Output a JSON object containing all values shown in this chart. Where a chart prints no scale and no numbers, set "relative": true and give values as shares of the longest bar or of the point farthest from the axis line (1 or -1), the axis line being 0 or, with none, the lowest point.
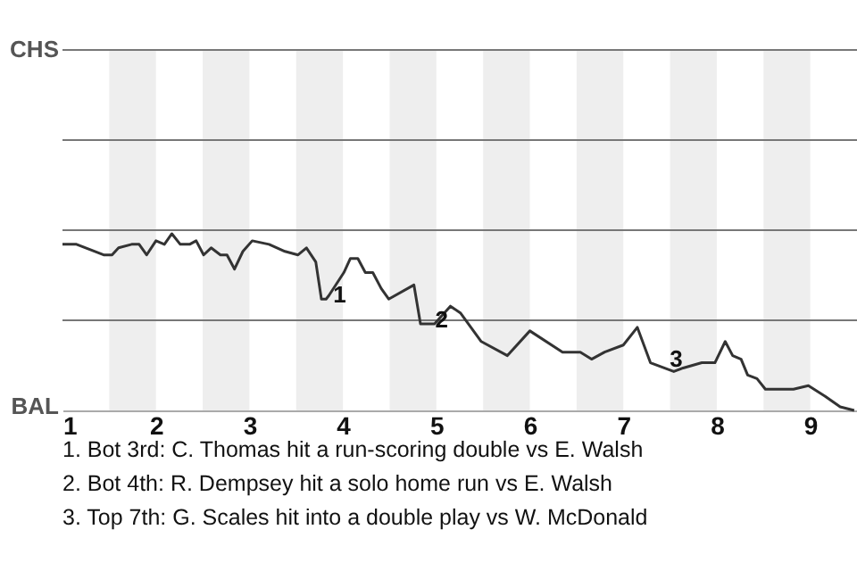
{
  "chart_data": {
    "type": "line",
    "relative": true,
    "x": [
      1.0,
      1.15,
      1.44,
      1.53,
      1.6,
      1.74,
      1.82,
      1.9,
      2.0,
      2.09,
      2.17,
      2.26,
      2.36,
      2.43,
      2.51,
      2.59,
      2.69,
      2.76,
      2.84,
      2.93,
      3.03,
      3.21,
      3.38,
      3.52,
      3.61,
      3.71,
      3.77,
      3.82,
      3.85,
      4.01,
      4.08,
      4.16,
      4.24,
      4.32,
      4.41,
      4.49,
      4.76,
      4.83,
      4.98,
      5.15,
      5.26,
      5.48,
      5.76,
      6.0,
      6.35,
      6.54,
      6.66,
      6.8,
      7.0,
      7.15,
      7.29,
      7.54,
      7.64,
      7.84,
      7.98,
      8.09,
      8.17,
      8.26,
      8.33,
      8.43,
      8.52,
      8.66,
      8.82,
      8.98,
      9.16,
      9.32,
      9.47
    ],
    "series": [
      {
        "color": "#333333",
        "values": [
          0.94,
          0.94,
          0.88,
          0.88,
          0.92,
          0.94,
          0.94,
          0.88,
          0.96,
          0.94,
          1,
          0.94,
          0.94,
          0.96,
          0.88,
          0.92,
          0.88,
          0.88,
          0.8,
          0.9,
          0.96,
          0.94,
          0.9,
          0.88,
          0.92,
          0.84,
          0.63,
          0.63,
          0.65,
          0.78,
          0.86,
          0.86,
          0.78,
          0.78,
          0.69,
          0.63,
          0.71,
          0.49,
          0.49,
          0.59,
          0.55,
          0.39,
          0.31,
          0.45,
          0.33,
          0.33,
          0.29,
          0.33,
          0.37,
          0.47,
          0.27,
          0.22,
          0.24,
          0.27,
          0.27,
          0.39,
          0.31,
          0.29,
          0.2,
          0.18,
          0.12,
          0.12,
          0.12,
          0.14,
          0.08,
          0.02,
          0
        ]
      }
    ],
    "xlim": [
      1,
      9.5
    ],
    "xticks": [
      1,
      2,
      3,
      4,
      5,
      6,
      7,
      8,
      9
    ],
    "ref_lines": [
      {
        "axis": "y",
        "value": 0.51,
        "color": "#777777"
      },
      {
        "axis": "y",
        "value": 1.02,
        "color": "#777777"
      },
      {
        "axis": "y",
        "value": 1.53,
        "color": "#777777"
      },
      {
        "axis": "y",
        "value": 2.04,
        "color": "#777777"
      }
    ],
    "line_style": "solid",
    "marker": "none",
    "bands": [
      {
        "axis": "x",
        "from": 1.5,
        "to": 2,
        "color": "#eeeeee"
      },
      {
        "axis": "x",
        "from": 2.5,
        "to": 3,
        "color": "#eeeeee"
      },
      {
        "axis": "x",
        "from": 3.5,
        "to": 4,
        "color": "#eeeeee"
      },
      {
        "axis": "x",
        "from": 4.5,
        "to": 5,
        "color": "#eeeeee"
      },
      {
        "axis": "x",
        "from": 5.5,
        "to": 6,
        "color": "#eeeeee"
      },
      {
        "axis": "x",
        "from": 6.5,
        "to": 7,
        "color": "#eeeeee"
      },
      {
        "axis": "x",
        "from": 7.5,
        "to": 8,
        "color": "#eeeeee"
      },
      {
        "axis": "x",
        "from": 8.5,
        "to": 9,
        "color": "#eeeeee"
      }
    ],
    "annotations": [
      "CHS",
      "BAL",
      {
        "text": "1",
        "x": 3.84,
        "y": 0.67
      },
      {
        "text": "2",
        "x": 4.93,
        "y": 0.53
      },
      {
        "text": "3",
        "x": 7.44,
        "y": 0.31
      },
      "1. Bot 3rd: C. Thomas hit a run-scoring double vs E. Walsh",
      "2. Bot 4th: R. Dempsey hit a solo home run vs E. Walsh",
      "3. Top 7th: G. Scales hit into a double play vs W. McDonald"
    ]
  }
}
